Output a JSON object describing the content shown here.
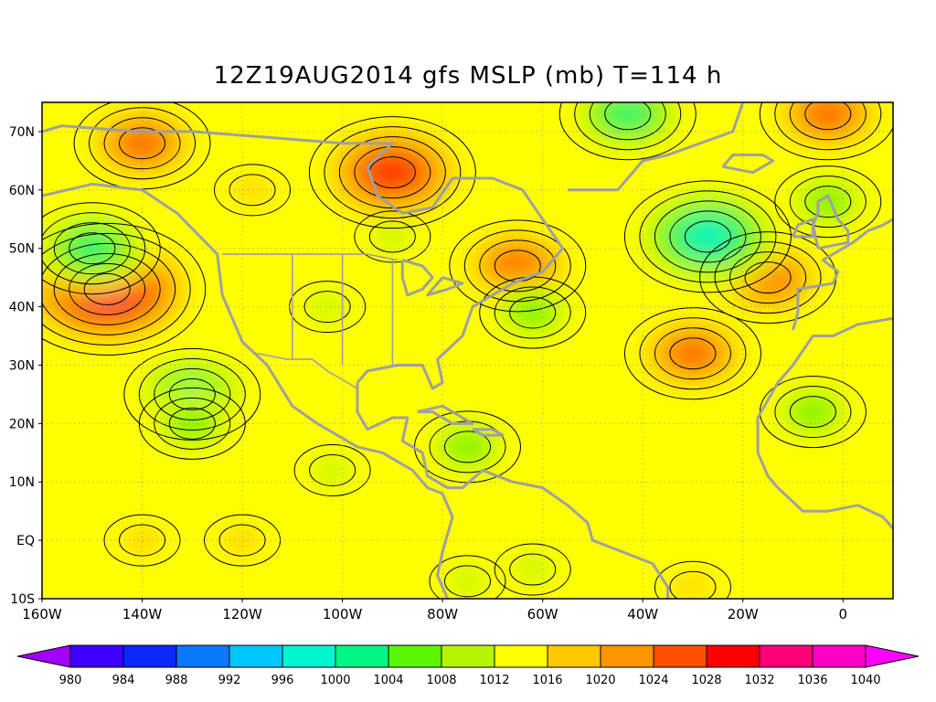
{
  "title": "12Z19AUG2014 gfs MSLP (mb) T=114 h",
  "map": {
    "lon_range": [
      -160,
      10
    ],
    "lat_range": [
      -10,
      75
    ],
    "lon_ticks": [
      {
        "value": -160,
        "label": "160W"
      },
      {
        "value": -140,
        "label": "140W"
      },
      {
        "value": -120,
        "label": "120W"
      },
      {
        "value": -100,
        "label": "100W"
      },
      {
        "value": -80,
        "label": "80W"
      },
      {
        "value": -60,
        "label": "60W"
      },
      {
        "value": -40,
        "label": "40W"
      },
      {
        "value": -20,
        "label": "20W"
      },
      {
        "value": 0,
        "label": "0"
      }
    ],
    "lat_ticks": [
      {
        "value": 70,
        "label": "70N"
      },
      {
        "value": 60,
        "label": "60N"
      },
      {
        "value": 50,
        "label": "50N"
      },
      {
        "value": 40,
        "label": "40N"
      },
      {
        "value": 30,
        "label": "30N"
      },
      {
        "value": 20,
        "label": "20N"
      },
      {
        "value": 10,
        "label": "10N"
      },
      {
        "value": 0,
        "label": "EQ"
      },
      {
        "value": -10,
        "label": "10S"
      }
    ],
    "background_level": 1012,
    "pressure_systems": [
      {
        "lon": -147,
        "lat": 43,
        "level": 1032
      },
      {
        "lon": -90,
        "lat": 63,
        "level": 1028
      },
      {
        "lon": -140,
        "lat": 68,
        "level": 1024
      },
      {
        "lon": -65,
        "lat": 47,
        "level": 1024
      },
      {
        "lon": -30,
        "lat": 32,
        "level": 1024
      },
      {
        "lon": -15,
        "lat": 45,
        "level": 1024
      },
      {
        "lon": -3,
        "lat": 73,
        "level": 1024
      },
      {
        "lon": -43,
        "lat": 73,
        "level": 1000
      },
      {
        "lon": -27,
        "lat": 52,
        "level": 996
      },
      {
        "lon": -3,
        "lat": 58,
        "level": 1004
      },
      {
        "lon": -130,
        "lat": 25,
        "level": 1000
      },
      {
        "lon": -130,
        "lat": 20,
        "level": 1004
      },
      {
        "lon": -90,
        "lat": 52,
        "level": 1008
      },
      {
        "lon": -103,
        "lat": 40,
        "level": 1008
      },
      {
        "lon": -62,
        "lat": 39,
        "level": 1004
      },
      {
        "lon": -75,
        "lat": 16,
        "level": 1004
      },
      {
        "lon": -6,
        "lat": 22,
        "level": 1004
      },
      {
        "lon": -62,
        "lat": -5,
        "level": 1008
      },
      {
        "lon": -75,
        "lat": -7,
        "level": 1008
      },
      {
        "lon": -102,
        "lat": 12,
        "level": 1008
      },
      {
        "lon": -118,
        "lat": 60,
        "level": 1016
      },
      {
        "lon": -150,
        "lat": 50,
        "level": 1000
      },
      {
        "lon": -30,
        "lat": -8,
        "level": 1016
      },
      {
        "lon": -120,
        "lat": 0,
        "level": 1012
      },
      {
        "lon": -140,
        "lat": 0,
        "level": 1012
      }
    ]
  },
  "legend": {
    "levels": [
      "980",
      "984",
      "988",
      "992",
      "996",
      "1000",
      "1004",
      "1008",
      "1012",
      "1016",
      "1020",
      "1024",
      "1028",
      "1032",
      "1036",
      "1040"
    ],
    "colors": [
      "#a000ff",
      "#3c00ff",
      "#0a28ff",
      "#0a78ff",
      "#00c8ff",
      "#00f5d2",
      "#00f582",
      "#5af500",
      "#b4f500",
      "#ffff00",
      "#ffc800",
      "#ff9600",
      "#ff5000",
      "#ff0000",
      "#ff0078",
      "#ff00c8",
      "#ff00ff"
    ]
  }
}
